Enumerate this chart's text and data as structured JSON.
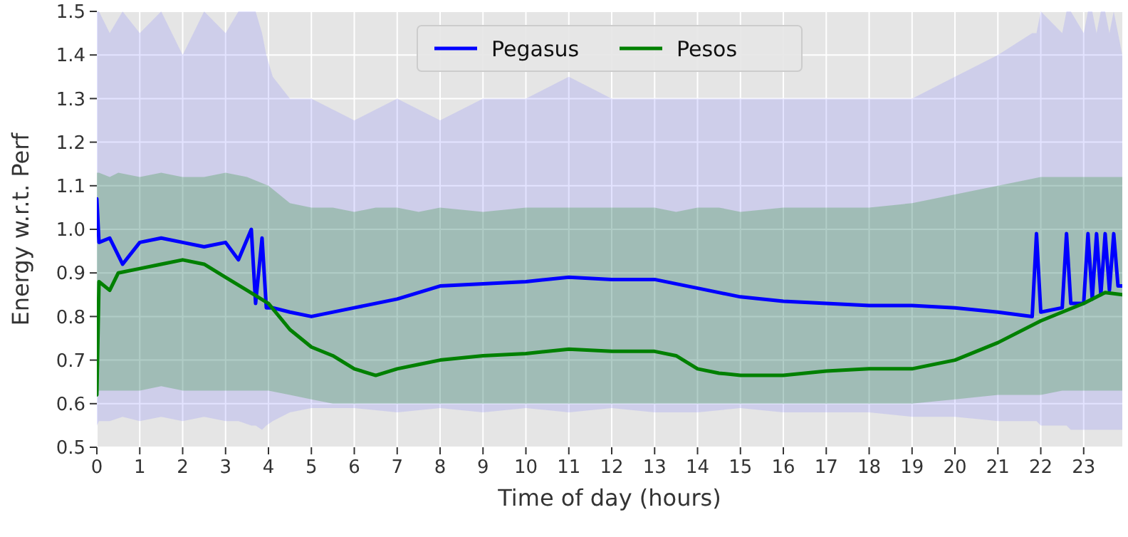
{
  "chart_data": {
    "type": "line",
    "xlabel": "Time of day (hours)",
    "ylabel": "Energy w.r.t. Perf",
    "xlim": [
      0,
      23.9
    ],
    "xticks": [
      0,
      1,
      2,
      3,
      4,
      5,
      6,
      7,
      8,
      9,
      10,
      11,
      12,
      13,
      14,
      15,
      16,
      17,
      18,
      19,
      20,
      21,
      22,
      23
    ],
    "ylim": [
      0.5,
      1.5
    ],
    "yticks": [
      0.5,
      0.6,
      0.7,
      0.8,
      0.9,
      {
        "value": 1,
        "label": "1.0"
      },
      1.1,
      1.2,
      1.3,
      1.4,
      1.5
    ],
    "grid": true,
    "legend": "top",
    "line_style": "solid",
    "marker": "none",
    "series": [
      {
        "name": "Pegasus",
        "color": "#0000ff",
        "x": [
          0,
          0.05,
          0.3,
          0.6,
          1,
          1.5,
          2,
          2.5,
          3,
          3.3,
          3.6,
          3.7,
          3.85,
          3.95,
          4.1,
          4.5,
          5,
          6,
          7,
          8,
          9,
          10,
          11,
          12,
          13,
          14,
          15,
          16,
          17,
          18,
          19,
          20,
          21,
          21.8,
          21.9,
          22,
          22.5,
          22.6,
          22.7,
          23,
          23.1,
          23.2,
          23.3,
          23.4,
          23.5,
          23.6,
          23.7,
          23.8,
          23.9
        ],
        "values": [
          1.07,
          0.97,
          0.98,
          0.92,
          0.97,
          0.98,
          0.97,
          0.96,
          0.97,
          0.93,
          1.0,
          0.83,
          0.98,
          0.82,
          0.82,
          0.81,
          0.8,
          0.82,
          0.84,
          0.87,
          0.875,
          0.88,
          0.89,
          0.885,
          0.885,
          0.865,
          0.845,
          0.835,
          0.83,
          0.825,
          0.825,
          0.82,
          0.81,
          0.8,
          0.99,
          0.81,
          0.82,
          0.99,
          0.83,
          0.83,
          0.99,
          0.84,
          0.99,
          0.85,
          0.99,
          0.86,
          0.99,
          0.87,
          0.87
        ],
        "lower": [
          0.55,
          0.56,
          0.56,
          0.57,
          0.56,
          0.57,
          0.56,
          0.57,
          0.56,
          0.56,
          0.55,
          0.55,
          0.54,
          0.55,
          0.56,
          0.58,
          0.59,
          0.59,
          0.58,
          0.59,
          0.58,
          0.59,
          0.58,
          0.59,
          0.58,
          0.58,
          0.59,
          0.58,
          0.58,
          0.58,
          0.57,
          0.57,
          0.56,
          0.56,
          0.56,
          0.55,
          0.55,
          0.55,
          0.54,
          0.54,
          0.54,
          0.54,
          0.54,
          0.54,
          0.54,
          0.54,
          0.54,
          0.54,
          0.54
        ],
        "upper": [
          1.5,
          1.5,
          1.45,
          1.5,
          1.45,
          1.5,
          1.4,
          1.5,
          1.45,
          1.5,
          1.5,
          1.5,
          1.45,
          1.4,
          1.35,
          1.3,
          1.3,
          1.25,
          1.3,
          1.25,
          1.3,
          1.3,
          1.35,
          1.3,
          1.3,
          1.3,
          1.3,
          1.3,
          1.3,
          1.3,
          1.3,
          1.35,
          1.4,
          1.45,
          1.45,
          1.5,
          1.45,
          1.5,
          1.5,
          1.45,
          1.5,
          1.5,
          1.45,
          1.5,
          1.5,
          1.45,
          1.5,
          1.45,
          1.4
        ]
      },
      {
        "name": "Pesos",
        "color": "#008000",
        "x": [
          0,
          0.05,
          0.3,
          0.5,
          1,
          1.5,
          2,
          2.5,
          3,
          3.5,
          4,
          4.5,
          5,
          5.5,
          6,
          6.5,
          7,
          7.5,
          8,
          9,
          10,
          11,
          12,
          13,
          13.5,
          14,
          14.5,
          15,
          16,
          17,
          18,
          19,
          20,
          21,
          22,
          22.5,
          23,
          23.5,
          23.9
        ],
        "values": [
          0.62,
          0.88,
          0.86,
          0.9,
          0.91,
          0.92,
          0.93,
          0.92,
          0.89,
          0.86,
          0.83,
          0.77,
          0.73,
          0.71,
          0.68,
          0.665,
          0.68,
          0.69,
          0.7,
          0.71,
          0.715,
          0.725,
          0.72,
          0.72,
          0.71,
          0.68,
          0.67,
          0.665,
          0.665,
          0.675,
          0.68,
          0.68,
          0.7,
          0.74,
          0.79,
          0.81,
          0.83,
          0.855,
          0.85
        ],
        "lower": [
          0.62,
          0.63,
          0.63,
          0.63,
          0.63,
          0.64,
          0.63,
          0.63,
          0.63,
          0.63,
          0.63,
          0.62,
          0.61,
          0.6,
          0.6,
          0.6,
          0.6,
          0.6,
          0.6,
          0.6,
          0.6,
          0.6,
          0.6,
          0.6,
          0.6,
          0.6,
          0.6,
          0.6,
          0.6,
          0.6,
          0.6,
          0.6,
          0.61,
          0.62,
          0.62,
          0.63,
          0.63,
          0.63,
          0.63
        ],
        "upper": [
          1.13,
          1.13,
          1.12,
          1.13,
          1.12,
          1.13,
          1.12,
          1.12,
          1.13,
          1.12,
          1.1,
          1.06,
          1.05,
          1.05,
          1.04,
          1.05,
          1.05,
          1.04,
          1.05,
          1.04,
          1.05,
          1.05,
          1.05,
          1.05,
          1.04,
          1.05,
          1.05,
          1.04,
          1.05,
          1.05,
          1.05,
          1.06,
          1.08,
          1.1,
          1.12,
          1.12,
          1.12,
          1.12,
          1.12
        ]
      }
    ]
  }
}
